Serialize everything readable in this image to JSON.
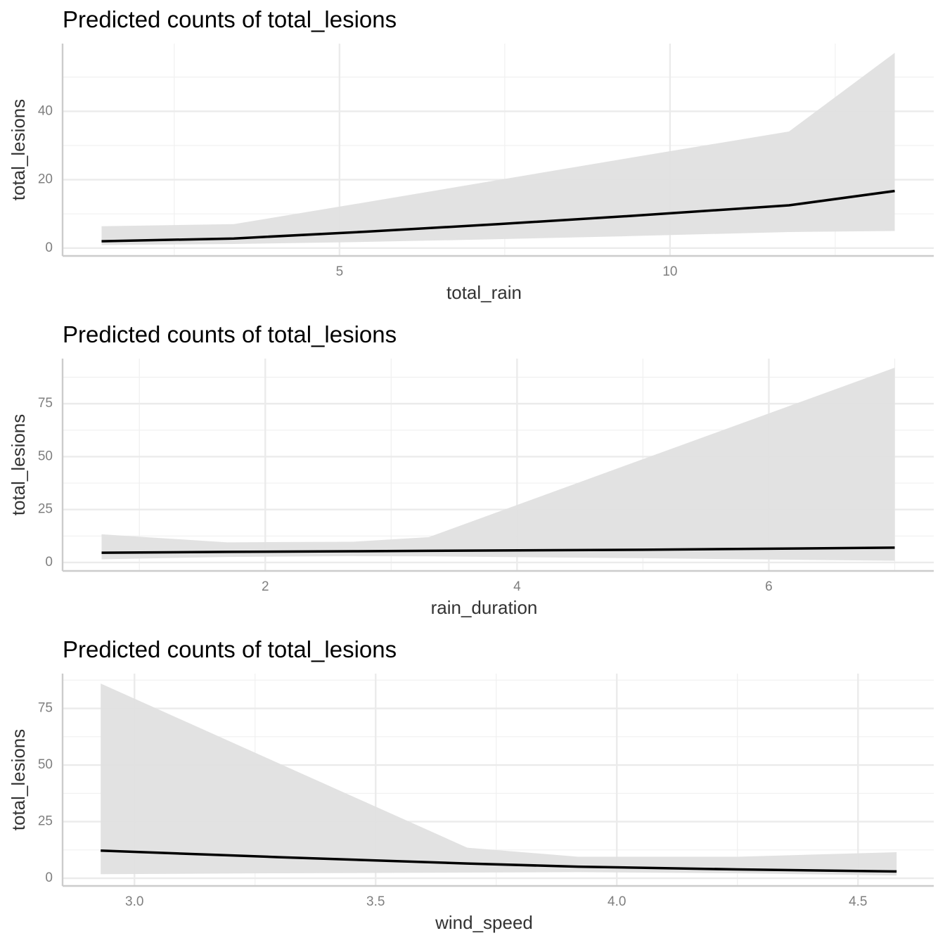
{
  "chart_data": [
    {
      "type": "line",
      "title": "Predicted counts of total_lesions",
      "xlabel": "total_rain",
      "ylabel": "total_lesions",
      "x": [
        1.4,
        3.4,
        5.4,
        7.4,
        9.4,
        11.8,
        13.4
      ],
      "values": [
        2.0,
        2.8,
        4.8,
        7.0,
        9.4,
        12.5,
        16.7
      ],
      "lower": [
        0.9,
        1.2,
        1.8,
        2.6,
        3.5,
        4.7,
        5.0
      ],
      "upper": [
        6.4,
        7.0,
        13.4,
        19.9,
        26.4,
        34.1,
        57.1
      ],
      "xlim": [
        0.81,
        13.99
      ],
      "ylim": [
        -2.3,
        59.8
      ],
      "xticks": [
        5,
        10
      ],
      "yticks": [
        0,
        20,
        40
      ],
      "grid": true,
      "line_color": "#000000",
      "ribbon_color": "#e0e0e0"
    },
    {
      "type": "line",
      "title": "Predicted counts of total_lesions",
      "xlabel": "rain_duration",
      "ylabel": "total_lesions",
      "x": [
        0.7,
        1.7,
        2.7,
        3.3,
        5.0,
        7.0
      ],
      "values": [
        4.6,
        5.0,
        5.3,
        5.5,
        6.0,
        7.0
      ],
      "lower": [
        1.5,
        2.6,
        3.0,
        2.9,
        2.0,
        0.8
      ],
      "upper": [
        13.3,
        9.5,
        9.8,
        12.0,
        48.8,
        92.0
      ],
      "xlim": [
        0.39,
        7.31
      ],
      "ylim": [
        -4.0,
        96.3
      ],
      "xticks": [
        2,
        4,
        6
      ],
      "yticks": [
        0,
        25,
        50,
        75
      ],
      "grid": true,
      "line_color": "#000000",
      "ribbon_color": "#e0e0e0"
    },
    {
      "type": "line",
      "title": "Predicted counts of total_lesions",
      "xlabel": "wind_speed",
      "ylabel": "total_lesions",
      "x": [
        2.93,
        3.3,
        3.69,
        3.92,
        4.25,
        4.58
      ],
      "values": [
        12.2,
        9.3,
        6.5,
        5.1,
        3.9,
        3.0
      ],
      "lower": [
        1.8,
        2.2,
        2.5,
        2.7,
        2.2,
        1.2
      ],
      "upper": [
        86.0,
        50.7,
        13.5,
        9.5,
        9.5,
        11.5
      ],
      "xlim": [
        2.851,
        4.657
      ],
      "ylim": [
        -3.4,
        90.4
      ],
      "xticks": [
        {
          "value": 3,
          "label": "3.0"
        },
        3.5,
        {
          "value": 4,
          "label": "4.0"
        },
        4.5
      ],
      "yticks": [
        0,
        25,
        50,
        75
      ],
      "grid": true,
      "line_color": "#000000",
      "ribbon_color": "#e0e0e0"
    }
  ]
}
